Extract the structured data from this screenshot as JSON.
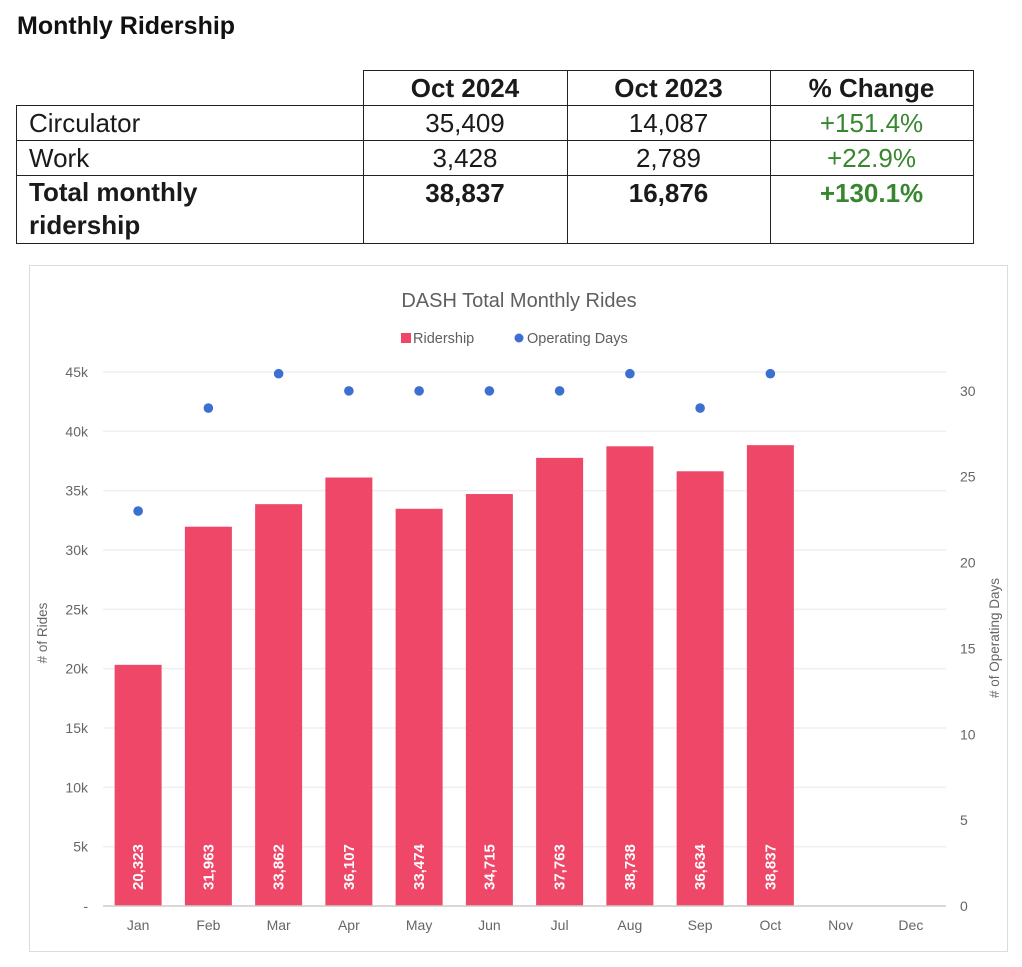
{
  "heading": "Monthly Ridership",
  "table": {
    "columns": [
      "",
      "Oct 2024",
      "Oct 2023",
      "% Change"
    ],
    "rows": [
      {
        "label": "Circulator",
        "oct2024": "35,409",
        "oct2023": "14,087",
        "change": "+151.4%"
      },
      {
        "label": "Work",
        "oct2024": "3,428",
        "oct2023": "2,789",
        "change": "+22.9%"
      },
      {
        "label_line1": "Total monthly",
        "label_line2": "ridership",
        "oct2024": "38,837",
        "oct2023": "16,876",
        "change": "+130.1%"
      }
    ],
    "change_color": "#38862f"
  },
  "chart_data": {
    "type": "bar",
    "title": "DASH Total Monthly Rides",
    "categories": [
      "Jan",
      "Feb",
      "Mar",
      "Apr",
      "May",
      "Jun",
      "Jul",
      "Aug",
      "Sep",
      "Oct",
      "Nov",
      "Dec"
    ],
    "series": [
      {
        "name": "Ridership",
        "type": "bar",
        "axis": "left",
        "color": "#ef4768",
        "values": [
          20323,
          31963,
          33862,
          36107,
          33474,
          34715,
          37763,
          38738,
          36634,
          38837,
          null,
          null
        ],
        "labels": [
          "20,323",
          "31,963",
          "33,862",
          "36,107",
          "33,474",
          "34,715",
          "37,763",
          "38,738",
          "36,634",
          "38,837",
          "",
          ""
        ]
      },
      {
        "name": "Operating Days",
        "type": "scatter",
        "axis": "right",
        "color": "#3b6fd0",
        "values": [
          23,
          29,
          31,
          30,
          30,
          30,
          30,
          31,
          29,
          31,
          null,
          null
        ]
      }
    ],
    "ylabel": "# of Rides",
    "y2label": "# of Operating Days",
    "ylim": [
      0,
      45000
    ],
    "y2lim": [
      0,
      31.1
    ],
    "yticks": [
      0,
      5000,
      10000,
      15000,
      20000,
      25000,
      30000,
      35000,
      40000,
      45000
    ],
    "ytick_labels": [
      "-",
      "5k",
      "10k",
      "15k",
      "20k",
      "25k",
      "30k",
      "35k",
      "40k",
      "45k"
    ],
    "y2ticks": [
      0,
      5,
      10,
      15,
      20,
      25,
      30
    ],
    "y2tick_labels": [
      "0",
      "5",
      "10",
      "15",
      "20",
      "25",
      "30"
    ],
    "grid": true,
    "legend_position": "top-center",
    "gridline_color": "#efefef"
  }
}
